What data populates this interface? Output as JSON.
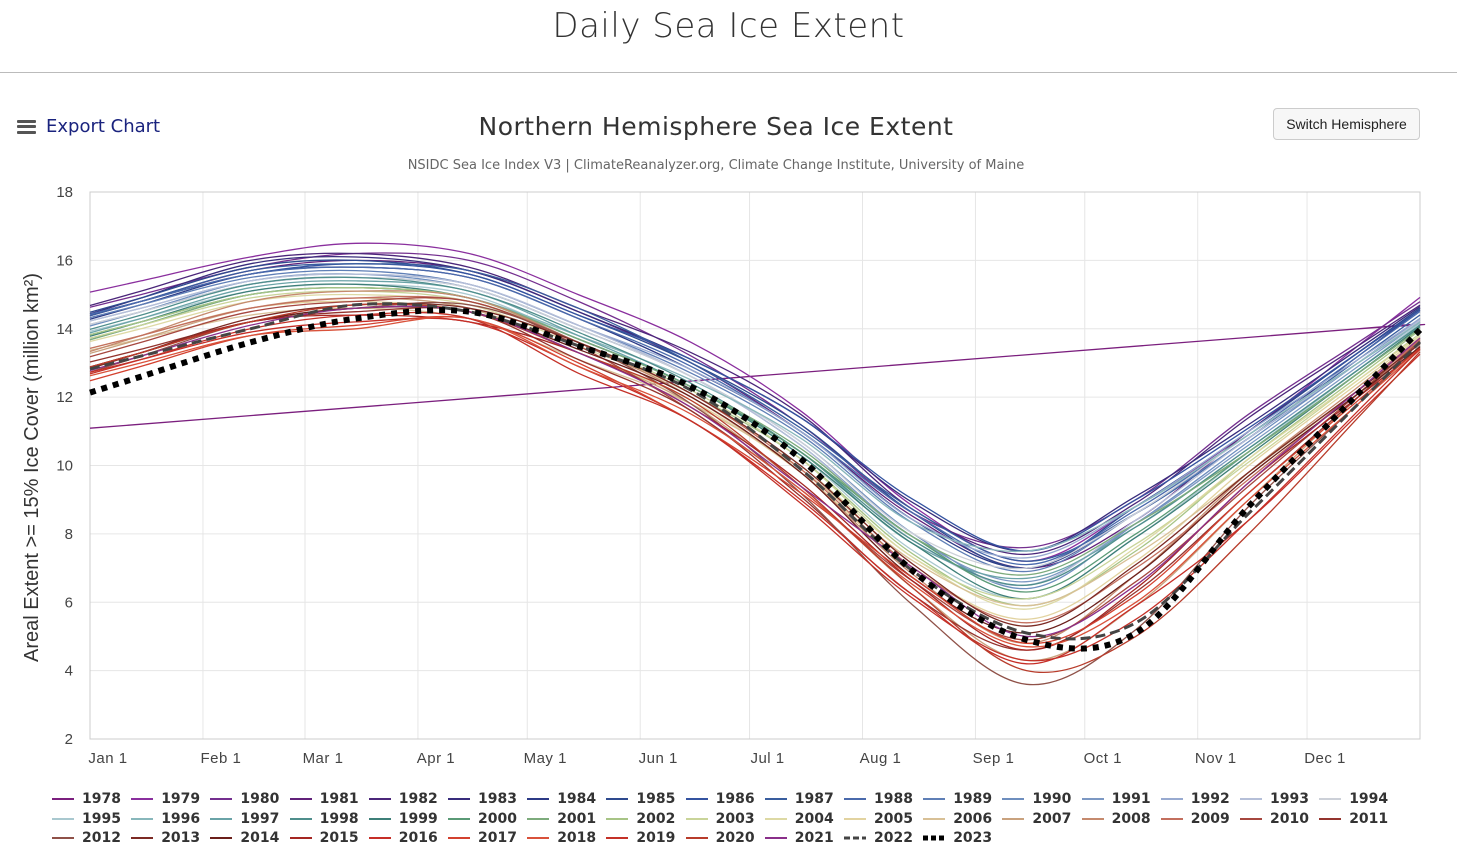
{
  "page": {
    "title": "Daily Sea Ice Extent"
  },
  "toolbar": {
    "export_label": "Export Chart",
    "switch_label": "Switch Hemisphere"
  },
  "chart_data": {
    "type": "line",
    "title": "Northern Hemisphere Sea Ice Extent",
    "subtitle": "NSIDC Sea Ice Index V3 | ClimateReanalyzer.org, Climate Change Institute, University of Maine",
    "ylabel": "Areal Extent >= 15% Ice Cover (million km²)",
    "ylim": [
      2,
      18
    ],
    "y_ticks": [
      "2",
      "4",
      "6",
      "8",
      "10",
      "12",
      "14",
      "16",
      "18"
    ],
    "x_ticks": [
      "Jan 1",
      "Feb 1",
      "Mar 1",
      "Apr 1",
      "May 1",
      "Jun 1",
      "Jul 1",
      "Aug 1",
      "Sep 1",
      "Oct 1",
      "Nov 1",
      "Dec 1"
    ],
    "x_tick_days": [
      1,
      32,
      60,
      91,
      121,
      152,
      182,
      213,
      244,
      274,
      305,
      335
    ],
    "x_domain_days": [
      1,
      366
    ],
    "grid": true,
    "legend_position": "bottom",
    "x_months": [
      1,
      2,
      3,
      4,
      5,
      6,
      7,
      8,
      9,
      10,
      11,
      12
    ],
    "series": [
      {
        "name": "1978",
        "color": "#7b1f7e",
        "dash": "solid",
        "values": [
          null,
          null,
          null,
          null,
          null,
          null,
          null,
          null,
          null,
          null,
          null,
          14.0
        ]
      },
      {
        "name": "1979",
        "color": "#8a2f9e",
        "dash": "solid",
        "values": [
          15.4,
          16.1,
          16.5,
          16.2,
          15.0,
          13.6,
          11.6,
          8.8,
          7.2,
          8.8,
          11.0,
          13.5
        ]
      },
      {
        "name": "1980",
        "color": "#742f8f",
        "dash": "solid",
        "values": [
          15.0,
          15.8,
          16.2,
          16.0,
          14.8,
          13.2,
          11.2,
          8.6,
          7.6,
          9.0,
          11.5,
          13.6
        ]
      },
      {
        "name": "1981",
        "color": "#61217a",
        "dash": "solid",
        "values": [
          14.8,
          15.7,
          16.0,
          15.7,
          14.5,
          13.0,
          11.0,
          8.5,
          7.0,
          8.4,
          11.0,
          13.3
        ]
      },
      {
        "name": "1982",
        "color": "#4b267a",
        "dash": "solid",
        "values": [
          15.1,
          16.0,
          16.2,
          15.8,
          14.6,
          13.3,
          11.5,
          8.7,
          7.4,
          8.9,
          11.4,
          13.5
        ]
      },
      {
        "name": "1983",
        "color": "#382c7c",
        "dash": "solid",
        "values": [
          14.9,
          15.9,
          16.1,
          15.7,
          14.5,
          13.1,
          11.4,
          8.9,
          7.5,
          9.1,
          11.2,
          13.4
        ]
      },
      {
        "name": "1984",
        "color": "#2c3a86",
        "dash": "solid",
        "values": [
          14.7,
          15.6,
          15.8,
          15.5,
          14.3,
          12.8,
          11.0,
          8.4,
          7.0,
          8.6,
          10.8,
          13.2
        ]
      },
      {
        "name": "1985",
        "color": "#2e4a8e",
        "dash": "solid",
        "values": [
          14.9,
          15.8,
          16.0,
          15.6,
          14.4,
          13.0,
          11.2,
          8.6,
          7.0,
          8.8,
          11.0,
          13.3
        ]
      },
      {
        "name": "1986",
        "color": "#3453a0",
        "dash": "solid",
        "values": [
          14.8,
          15.6,
          15.9,
          15.6,
          14.4,
          13.1,
          11.4,
          9.0,
          7.5,
          9.0,
          11.1,
          13.3
        ]
      },
      {
        "name": "1987",
        "color": "#395d9e",
        "dash": "solid",
        "values": [
          14.8,
          15.7,
          15.9,
          15.7,
          14.6,
          13.0,
          11.1,
          8.7,
          7.2,
          8.6,
          10.8,
          13.1
        ]
      },
      {
        "name": "1988",
        "color": "#4a6aac",
        "dash": "solid",
        "values": [
          14.8,
          15.6,
          15.8,
          15.5,
          14.3,
          12.9,
          11.0,
          8.6,
          7.1,
          8.7,
          10.9,
          13.2
        ]
      },
      {
        "name": "1989",
        "color": "#5f7fb6",
        "dash": "solid",
        "values": [
          14.7,
          15.5,
          15.7,
          15.3,
          14.1,
          12.7,
          10.9,
          8.3,
          6.9,
          8.6,
          10.8,
          13.0
        ]
      },
      {
        "name": "1990",
        "color": "#6e8ebe",
        "dash": "solid",
        "values": [
          14.5,
          15.4,
          15.6,
          15.2,
          14.0,
          12.6,
          10.7,
          8.0,
          6.4,
          8.3,
          10.7,
          13.0
        ]
      },
      {
        "name": "1991",
        "color": "#7c98c3",
        "dash": "solid",
        "values": [
          14.5,
          15.3,
          15.5,
          15.2,
          14.0,
          12.6,
          10.6,
          7.9,
          6.6,
          8.3,
          10.6,
          12.9
        ]
      },
      {
        "name": "1992",
        "color": "#98aad0",
        "dash": "solid",
        "values": [
          14.6,
          15.4,
          15.6,
          15.3,
          14.1,
          12.8,
          11.0,
          8.4,
          7.3,
          8.8,
          11.0,
          13.1
        ]
      },
      {
        "name": "1993",
        "color": "#b5bfd8",
        "dash": "solid",
        "values": [
          14.6,
          15.4,
          15.6,
          15.3,
          14.1,
          12.6,
          10.6,
          7.8,
          6.5,
          8.4,
          10.8,
          13.0
        ]
      },
      {
        "name": "1994",
        "color": "#ccd0d8",
        "dash": "solid",
        "values": [
          14.5,
          15.3,
          15.5,
          15.2,
          14.0,
          12.6,
          10.7,
          8.0,
          7.0,
          8.6,
          10.9,
          13.0
        ]
      },
      {
        "name": "1995",
        "color": "#a9c8cf",
        "dash": "solid",
        "values": [
          14.3,
          15.1,
          15.3,
          15.0,
          13.7,
          12.3,
          10.3,
          7.5,
          6.1,
          7.9,
          10.4,
          12.8
        ]
      },
      {
        "name": "1996",
        "color": "#88b7bb",
        "dash": "solid",
        "values": [
          14.1,
          15.0,
          15.2,
          14.9,
          13.8,
          12.5,
          10.8,
          8.3,
          7.5,
          8.8,
          10.9,
          13.0
        ]
      },
      {
        "name": "1997",
        "color": "#6aa3a7",
        "dash": "solid",
        "values": [
          14.3,
          15.2,
          15.4,
          15.1,
          13.8,
          12.3,
          10.4,
          7.7,
          6.7,
          8.2,
          10.5,
          12.8
        ]
      },
      {
        "name": "1998",
        "color": "#4f8e8c",
        "dash": "solid",
        "values": [
          14.4,
          15.3,
          15.5,
          15.1,
          13.9,
          12.4,
          10.4,
          7.8,
          6.5,
          8.2,
          10.5,
          12.8
        ]
      },
      {
        "name": "1999",
        "color": "#3e7f78",
        "dash": "solid",
        "values": [
          14.2,
          15.1,
          15.3,
          14.9,
          13.7,
          12.3,
          10.3,
          7.7,
          6.1,
          7.9,
          10.3,
          12.7
        ]
      },
      {
        "name": "2000",
        "color": "#5a9a76",
        "dash": "solid",
        "values": [
          14.2,
          15.0,
          15.2,
          14.9,
          13.7,
          12.3,
          10.4,
          7.9,
          6.3,
          8.0,
          10.4,
          12.7
        ]
      },
      {
        "name": "2001",
        "color": "#7dab7c",
        "dash": "solid",
        "values": [
          14.1,
          15.0,
          15.2,
          14.9,
          13.7,
          12.3,
          10.5,
          7.9,
          6.8,
          8.3,
          10.4,
          12.7
        ]
      },
      {
        "name": "2002",
        "color": "#a7c486",
        "dash": "solid",
        "values": [
          14.2,
          15.0,
          15.2,
          14.9,
          13.6,
          12.1,
          10.2,
          7.4,
          5.9,
          7.5,
          10.2,
          12.6
        ]
      },
      {
        "name": "2003",
        "color": "#c9d499",
        "dash": "solid",
        "values": [
          14.1,
          14.9,
          15.1,
          14.8,
          13.6,
          12.2,
          10.2,
          7.3,
          6.1,
          7.7,
          10.1,
          12.5
        ]
      },
      {
        "name": "2004",
        "color": "#ddd9a4",
        "dash": "solid",
        "values": [
          14.0,
          14.8,
          15.0,
          14.7,
          13.5,
          12.1,
          10.0,
          7.3,
          5.8,
          7.6,
          10.2,
          12.5
        ]
      },
      {
        "name": "2005",
        "color": "#e2d3a0",
        "dash": "solid",
        "values": [
          13.8,
          14.6,
          14.8,
          14.5,
          13.3,
          11.9,
          9.8,
          7.0,
          5.5,
          7.2,
          10.0,
          12.4
        ]
      },
      {
        "name": "2006",
        "color": "#d8c096",
        "dash": "solid",
        "values": [
          13.7,
          14.4,
          14.6,
          14.3,
          13.1,
          11.8,
          9.9,
          7.2,
          5.9,
          7.4,
          9.8,
          12.2
        ]
      },
      {
        "name": "2007",
        "color": "#c9a27e",
        "dash": "solid",
        "values": [
          13.7,
          14.6,
          14.9,
          14.6,
          13.3,
          11.8,
          9.4,
          6.4,
          4.3,
          5.9,
          9.0,
          12.0
        ]
      },
      {
        "name": "2008",
        "color": "#c58a6e",
        "dash": "solid",
        "values": [
          13.8,
          14.8,
          15.1,
          14.9,
          13.6,
          12.0,
          9.8,
          6.8,
          4.8,
          6.8,
          9.8,
          12.3
        ]
      },
      {
        "name": "2009",
        "color": "#c36f5e",
        "dash": "solid",
        "values": [
          13.8,
          14.6,
          14.9,
          14.8,
          13.6,
          12.1,
          9.9,
          7.0,
          5.4,
          7.0,
          9.6,
          12.2
        ]
      },
      {
        "name": "2010",
        "color": "#a6473f",
        "dash": "solid",
        "values": [
          13.6,
          14.5,
          14.8,
          14.8,
          13.5,
          11.6,
          9.3,
          6.6,
          4.9,
          6.6,
          9.4,
          12.1
        ]
      },
      {
        "name": "2011",
        "color": "#94342e",
        "dash": "solid",
        "values": [
          13.4,
          14.2,
          14.5,
          14.5,
          13.1,
          11.6,
          9.1,
          6.2,
          4.6,
          6.3,
          9.2,
          12.0
        ]
      },
      {
        "name": "2012",
        "color": "#8f5148",
        "dash": "solid",
        "values": [
          13.2,
          14.2,
          14.6,
          14.7,
          13.6,
          11.8,
          9.2,
          5.9,
          3.6,
          5.2,
          8.8,
          11.8
        ]
      },
      {
        "name": "2013",
        "color": "#7c2a24",
        "dash": "solid",
        "values": [
          13.3,
          14.3,
          14.7,
          14.6,
          13.6,
          12.1,
          10.0,
          7.1,
          5.3,
          7.1,
          9.8,
          12.2
        ]
      },
      {
        "name": "2014",
        "color": "#6b1f1a",
        "dash": "solid",
        "values": [
          13.3,
          14.2,
          14.6,
          14.5,
          13.4,
          12.0,
          9.8,
          6.7,
          5.1,
          6.8,
          9.7,
          12.1
        ]
      },
      {
        "name": "2015",
        "color": "#a52622",
        "dash": "solid",
        "values": [
          13.3,
          14.2,
          14.4,
          14.2,
          13.3,
          11.7,
          9.5,
          6.6,
          4.6,
          6.4,
          9.5,
          12.0
        ]
      },
      {
        "name": "2016",
        "color": "#c62e27",
        "dash": "solid",
        "values": [
          13.1,
          13.9,
          14.2,
          14.2,
          12.9,
          11.3,
          9.0,
          6.2,
          4.2,
          5.9,
          8.4,
          11.5
        ]
      },
      {
        "name": "2017",
        "color": "#d3412f",
        "dash": "solid",
        "values": [
          12.9,
          13.8,
          14.1,
          14.3,
          13.0,
          11.3,
          9.2,
          6.7,
          4.8,
          6.2,
          9.2,
          11.9
        ]
      },
      {
        "name": "2018",
        "color": "#d9523b",
        "dash": "solid",
        "values": [
          13.0,
          13.8,
          14.0,
          14.3,
          12.9,
          11.5,
          9.3,
          6.5,
          4.7,
          6.0,
          9.0,
          11.8
        ]
      },
      {
        "name": "2019",
        "color": "#c43128",
        "dash": "solid",
        "values": [
          13.1,
          14.0,
          14.4,
          14.3,
          12.7,
          11.3,
          8.9,
          6.1,
          4.3,
          5.5,
          8.4,
          11.6
        ]
      },
      {
        "name": "2020",
        "color": "#b83c2b",
        "dash": "solid",
        "values": [
          13.3,
          14.2,
          14.7,
          14.5,
          13.3,
          11.9,
          9.4,
          6.4,
          4.0,
          5.0,
          8.0,
          11.4
        ]
      },
      {
        "name": "2021",
        "color": "#8a2f8a",
        "dash": "solid",
        "values": [
          13.2,
          14.1,
          14.6,
          14.5,
          13.3,
          11.7,
          9.4,
          7.0,
          5.0,
          6.5,
          9.5,
          12.2
        ]
      },
      {
        "name": "2022",
        "color": "#444444",
        "dash": "dashed",
        "values": [
          13.2,
          14.0,
          14.7,
          14.5,
          13.5,
          12.2,
          9.9,
          6.9,
          5.1,
          5.4,
          8.6,
          11.8
        ]
      },
      {
        "name": "2023",
        "color": "#000000",
        "dash": "dotted",
        "values": [
          12.6,
          13.6,
          14.3,
          14.5,
          13.5,
          12.3,
          10.2,
          6.9,
          4.9,
          5.1,
          8.8,
          12.1
        ]
      }
    ]
  }
}
